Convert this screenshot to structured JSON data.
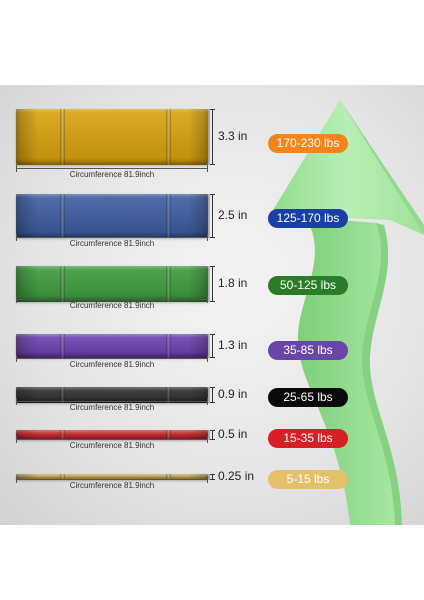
{
  "rows": [
    {
      "thickness": "3.3 in",
      "resistance": "170-230 lbs",
      "circumference": "Circumference 81.9inch",
      "band_color": "#d8a10a",
      "pill_color": "#f2861d"
    },
    {
      "thickness": "2.5 in",
      "resistance": "125-170 lbs",
      "circumference": "Circumference 81.9inch",
      "band_color": "#3b5aa0",
      "pill_color": "#1a3fa6"
    },
    {
      "thickness": "1.8 in",
      "resistance": "50-125 lbs",
      "circumference": "Circumference 81.9inch",
      "band_color": "#3b9a3a",
      "pill_color": "#2a7d27"
    },
    {
      "thickness": "1.3 in",
      "resistance": "35-85 lbs",
      "circumference": "Circumference 81.9inch",
      "band_color": "#6b3fb0",
      "pill_color": "#6a46a8"
    },
    {
      "thickness": "0.9 in",
      "resistance": "25-65 lbs",
      "circumference": "Circumference 81.9inch",
      "band_color": "#2e2e2e",
      "pill_color": "#0a0a0a"
    },
    {
      "thickness": "0.5 in",
      "resistance": "15-35 lbs",
      "circumference": "Circumference 81.9inch",
      "band_color": "#d0242a",
      "pill_color": "#d81f26"
    },
    {
      "thickness": "0.25 in",
      "resistance": "5-15 lbs",
      "circumference": "Circumference 81.9inch",
      "band_color": "#d8b14a",
      "pill_color": "#e4c06a"
    }
  ],
  "arrow_color": "#a9e8a6"
}
